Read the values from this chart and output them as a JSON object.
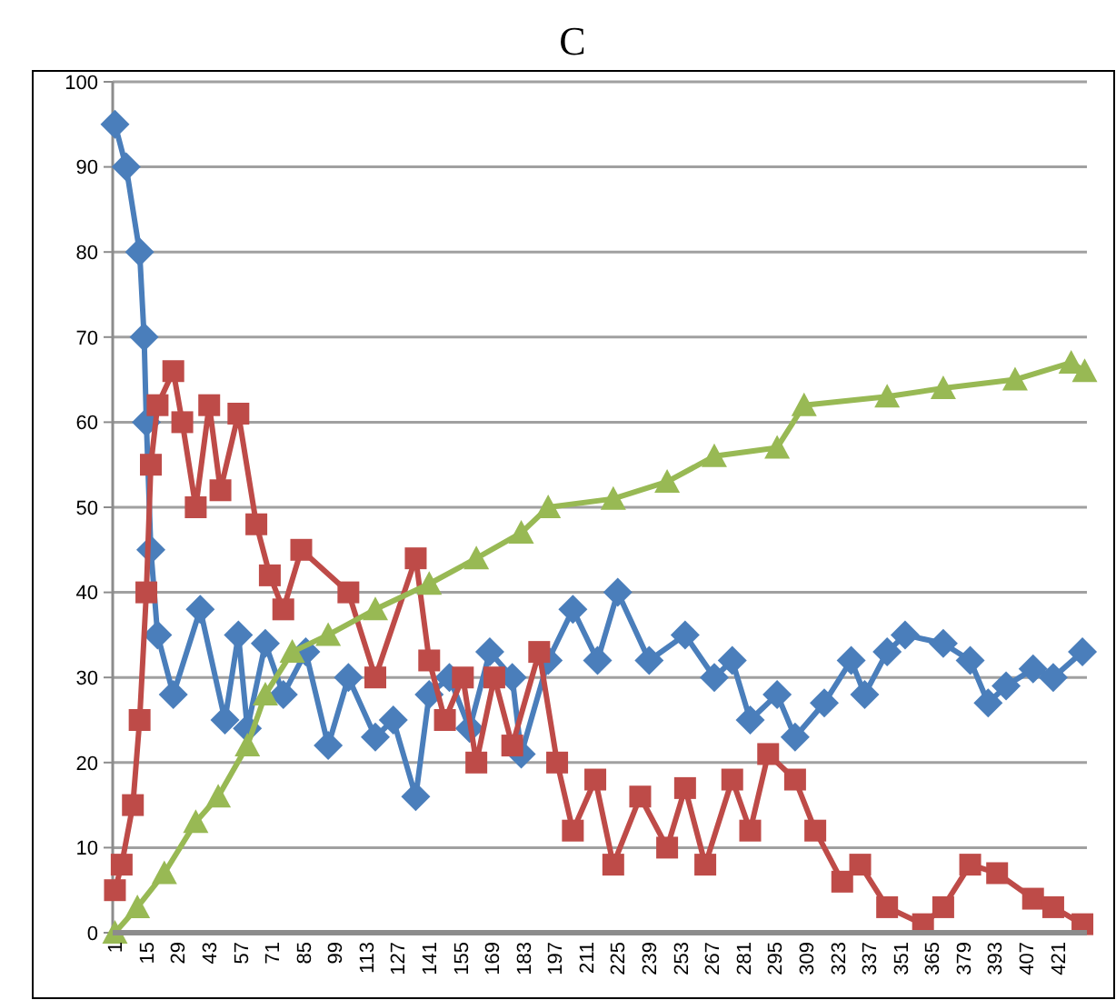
{
  "chart_data": {
    "type": "line",
    "title": "C",
    "xlim": [
      0,
      434
    ],
    "xticks": [
      1,
      15,
      29,
      43,
      57,
      71,
      85,
      99,
      113,
      127,
      141,
      155,
      169,
      183,
      197,
      211,
      225,
      239,
      253,
      267,
      281,
      295,
      309,
      323,
      337,
      351,
      365,
      379,
      393,
      407,
      421
    ],
    "ylim": [
      0,
      100
    ],
    "yticks": [
      0,
      10,
      20,
      30,
      40,
      50,
      60,
      70,
      80,
      90,
      100
    ],
    "grid": "y",
    "series": [
      {
        "color": "#4a7ebb",
        "marker": "diamond",
        "x": [
          1,
          6,
          12,
          14,
          15,
          17,
          20,
          27,
          39,
          50,
          56,
          60,
          68,
          76,
          86,
          96,
          105,
          117,
          125,
          135,
          141,
          150,
          159,
          168,
          178,
          182,
          194,
          205,
          216,
          225,
          239,
          255,
          268,
          276,
          284,
          296,
          304,
          317,
          329,
          335,
          345,
          353,
          370,
          382,
          390,
          398,
          410,
          419,
          432
        ],
        "values": [
          95,
          90,
          80,
          70,
          60,
          45,
          35,
          28,
          38,
          25,
          35,
          24,
          34,
          28,
          33,
          22,
          30,
          23,
          25,
          16,
          28,
          30,
          24,
          33,
          30,
          21,
          32,
          38,
          32,
          40,
          32,
          35,
          30,
          32,
          25,
          28,
          23,
          27,
          32,
          28,
          33,
          35,
          34,
          32,
          27,
          29,
          31,
          30,
          33
        ]
      },
      {
        "color": "#be4b48",
        "marker": "square",
        "x": [
          1,
          4,
          9,
          12,
          15,
          17,
          20,
          27,
          31,
          37,
          43,
          48,
          56,
          64,
          70,
          76,
          84,
          92,
          105,
          117,
          135,
          141,
          148,
          156,
          162,
          170,
          178,
          190,
          198,
          205,
          215,
          223,
          235,
          247,
          255,
          264,
          276,
          284,
          292,
          304,
          313,
          325,
          333,
          345,
          361,
          370,
          382,
          394,
          410,
          419,
          432
        ],
        "values": [
          5,
          8,
          15,
          25,
          40,
          55,
          62,
          66,
          60,
          50,
          62,
          52,
          61,
          48,
          42,
          38,
          45,
          null,
          40,
          30,
          44,
          32,
          25,
          30,
          20,
          30,
          22,
          33,
          20,
          12,
          18,
          8,
          16,
          10,
          17,
          8,
          18,
          12,
          21,
          18,
          12,
          6,
          8,
          3,
          1,
          3,
          8,
          7,
          4,
          3,
          1
        ]
      },
      {
        "color": "#98b954",
        "marker": "triangle",
        "x": [
          1,
          11,
          23,
          37,
          47,
          60,
          68,
          80,
          96,
          117,
          141,
          162,
          182,
          194,
          223,
          247,
          268,
          296,
          308,
          345,
          370,
          402,
          427,
          433
        ],
        "values": [
          0,
          3,
          7,
          13,
          16,
          22,
          28,
          33,
          35,
          38,
          41,
          44,
          47,
          50,
          51,
          53,
          56,
          57,
          62,
          63,
          64,
          65,
          67,
          66
        ]
      }
    ]
  }
}
